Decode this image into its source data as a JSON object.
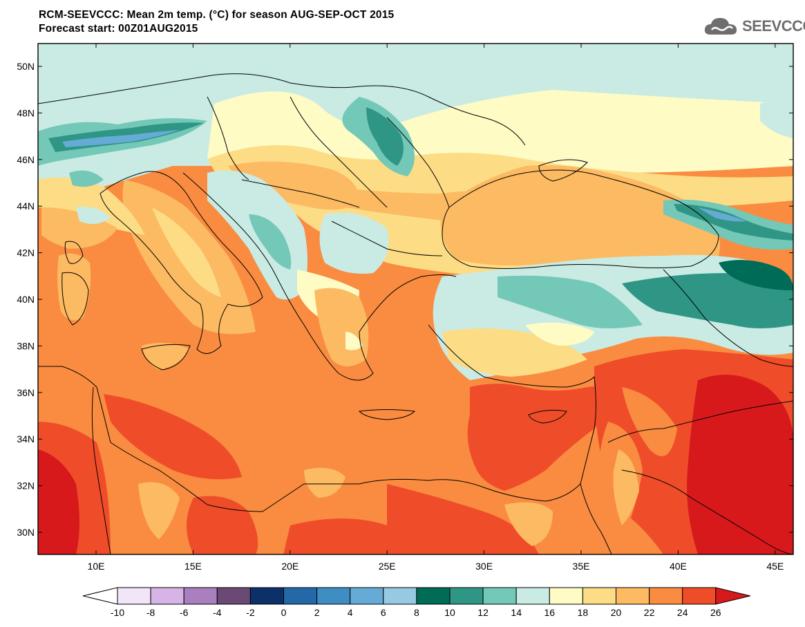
{
  "header": {
    "title_line1": "RCM-SEEVCCC: Mean 2m temp. (°C) for season AUG-SEP-OCT 2015",
    "title_line2": "Forecast start: 00Z01AUG2015"
  },
  "logo": {
    "icon": "cloud-icon",
    "text": "SEEVCCC"
  },
  "map": {
    "lat_labels": [
      "50N",
      "48N",
      "46N",
      "44N",
      "42N",
      "40N",
      "38N",
      "36N",
      "34N",
      "32N",
      "30N"
    ],
    "lon_labels": [
      "10E",
      "15E",
      "20E",
      "25E",
      "30E",
      "35E",
      "40E",
      "45E"
    ]
  },
  "colorbar": {
    "ticks": [
      "-10",
      "-8",
      "-6",
      "-4",
      "-2",
      "0",
      "2",
      "4",
      "6",
      "8",
      "10",
      "12",
      "14",
      "16",
      "18",
      "20",
      "22",
      "24",
      "26"
    ],
    "colors": [
      "#f2e5f7",
      "#d6b4e6",
      "#a97fbe",
      "#6a4a75",
      "#0b3168",
      "#2468a8",
      "#3e8ec4",
      "#66abd6",
      "#98c9e3",
      "#006b56",
      "#2f9686",
      "#74c8b7",
      "#c9ebe4",
      "#fefbc5",
      "#fddc86",
      "#fcba62",
      "#f98c40",
      "#ef4d2a"
    ],
    "under_color": "#ffffff",
    "over_color": "#d7191c"
  }
}
